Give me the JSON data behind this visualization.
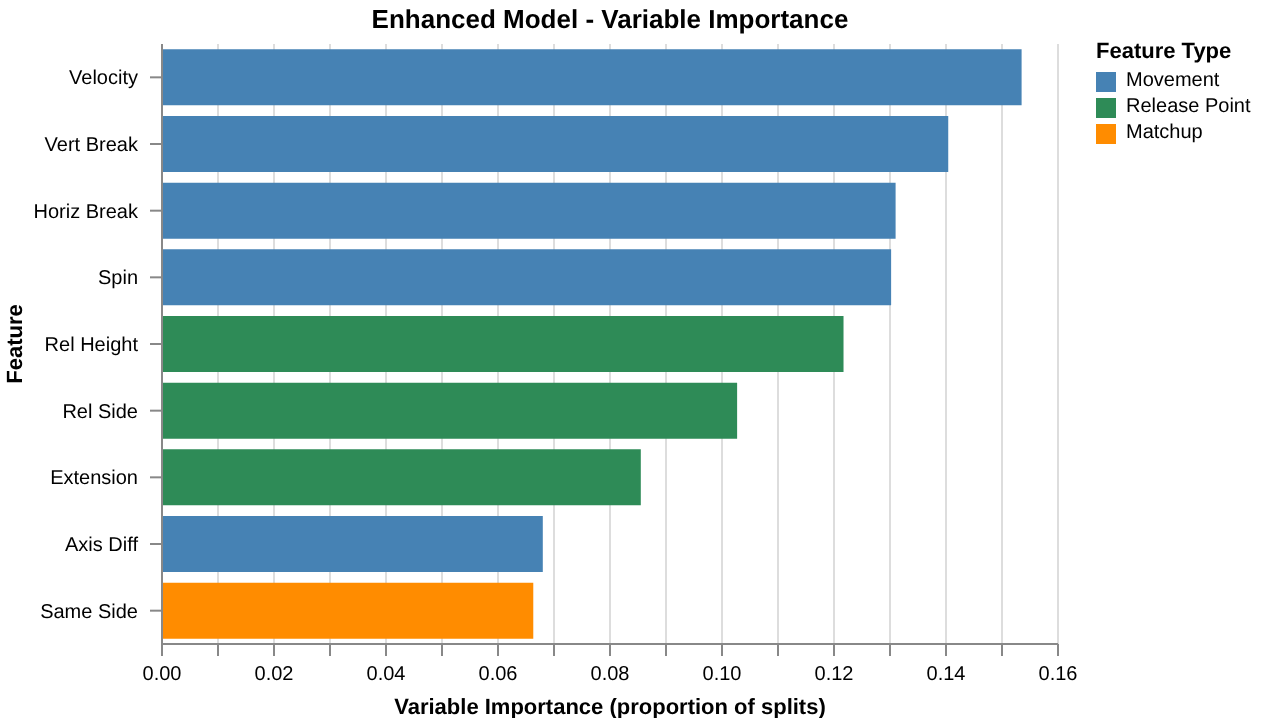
{
  "chart_data": {
    "type": "bar",
    "orientation": "horizontal",
    "title": "Enhanced Model - Variable Importance",
    "xlabel": "Variable Importance (proportion of splits)",
    "ylabel": "Feature",
    "legend_title": "Feature Type",
    "legend": "right",
    "categories": [
      "Velocity",
      "Vert Break",
      "Horiz Break",
      "Spin",
      "Rel Height",
      "Rel Side",
      "Extension",
      "Axis Diff",
      "Same Side"
    ],
    "series": [
      {
        "name": "Movement",
        "color": "#4682b4",
        "values": [
          0.1535,
          0.1404,
          0.131,
          0.1302,
          null,
          null,
          null,
          0.068,
          null
        ]
      },
      {
        "name": "Release Point",
        "color": "#2e8b57",
        "values": [
          null,
          null,
          null,
          null,
          0.1217,
          0.1027,
          0.0855,
          null,
          null
        ]
      },
      {
        "name": "Matchup",
        "color": "#ff8c00",
        "values": [
          null,
          null,
          null,
          null,
          null,
          null,
          null,
          null,
          0.0663
        ]
      }
    ],
    "xlim": [
      0,
      0.16
    ],
    "xticks": [
      {
        "value": 0,
        "label": "0.00"
      },
      {
        "value": 0.01,
        "label": null
      },
      {
        "value": 0.02,
        "label": "0.02"
      },
      {
        "value": 0.03,
        "label": null
      },
      {
        "value": 0.04,
        "label": "0.04"
      },
      {
        "value": 0.05,
        "label": null
      },
      {
        "value": 0.06,
        "label": "0.06"
      },
      {
        "value": 0.07,
        "label": null
      },
      {
        "value": 0.08,
        "label": "0.08"
      },
      {
        "value": 0.09,
        "label": null
      },
      {
        "value": 0.1,
        "label": "0.10"
      },
      {
        "value": 0.11,
        "label": null
      },
      {
        "value": 0.12,
        "label": "0.12"
      },
      {
        "value": 0.13,
        "label": null
      },
      {
        "value": 0.14,
        "label": "0.14"
      },
      {
        "value": 0.15,
        "label": null
      },
      {
        "value": 0.16,
        "label": "0.16"
      }
    ],
    "grid": "x"
  }
}
